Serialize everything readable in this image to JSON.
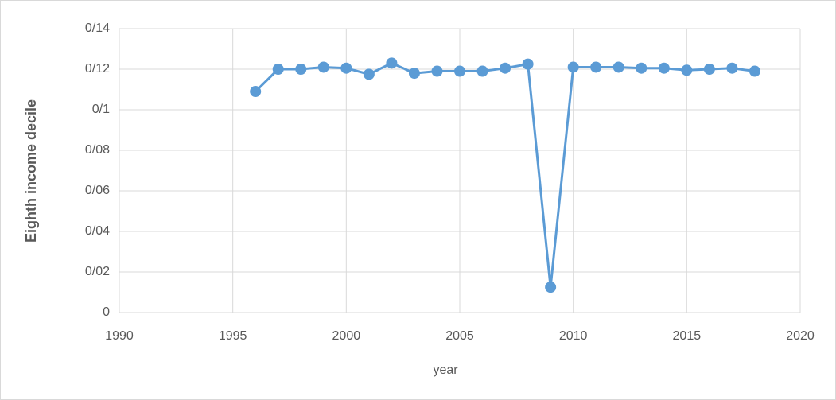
{
  "chart_data": {
    "type": "line",
    "y_label": "Eighth income decile",
    "x_label": "year",
    "x": [
      1996,
      1997,
      1998,
      1999,
      2000,
      2001,
      2002,
      2003,
      2004,
      2005,
      2006,
      2007,
      2008,
      2009,
      2010,
      2011,
      2012,
      2013,
      2014,
      2015,
      2016,
      2017,
      2018
    ],
    "values": [
      0.109,
      0.12,
      0.12,
      0.121,
      0.1205,
      0.1175,
      0.123,
      0.118,
      0.119,
      0.119,
      0.119,
      0.1205,
      0.1225,
      0.0125,
      0.121,
      0.121,
      0.121,
      0.1205,
      0.1205,
      0.1195,
      0.12,
      0.1205,
      0.119
    ],
    "color": "#5b9bd5",
    "markers": true,
    "xlim": [
      1990,
      2020
    ],
    "xticks": [
      1990,
      1995,
      2000,
      2005,
      2010,
      2015,
      2020
    ],
    "ylim": [
      0,
      0.14
    ],
    "yticks": [
      0,
      {
        "value": 0.02,
        "label": "0/02"
      },
      {
        "value": 0.04,
        "label": "0/04"
      },
      {
        "value": 0.06,
        "label": "0/06"
      },
      {
        "value": 0.08,
        "label": "0/08"
      },
      {
        "value": 0.1,
        "label": "0/1"
      },
      {
        "value": 0.12,
        "label": "0/12"
      },
      {
        "value": 0.14,
        "label": "0/14"
      }
    ],
    "grid": true
  }
}
